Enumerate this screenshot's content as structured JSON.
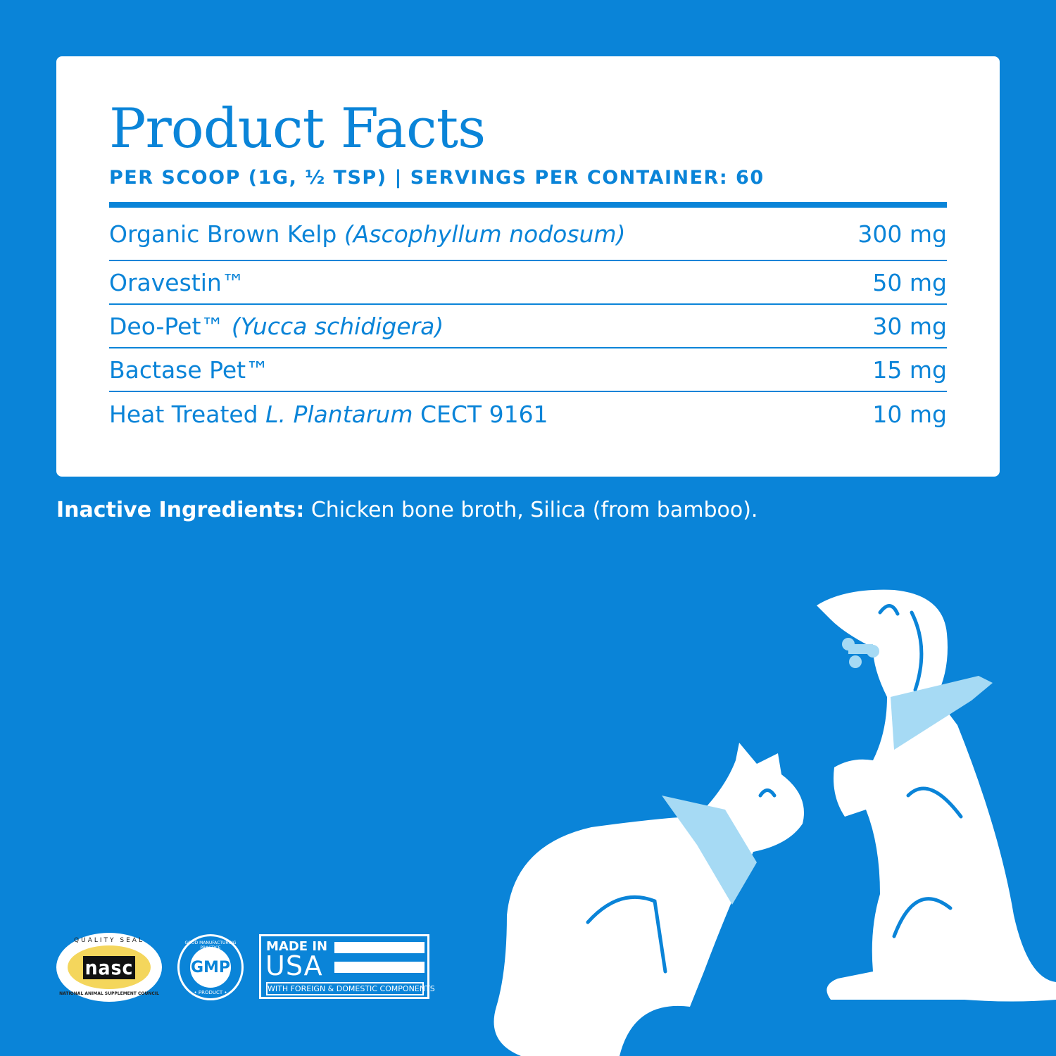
{
  "facts": {
    "title": "Product Facts",
    "serving": "PER SCOOP (1G, ½ TSP)  |  SERVINGS PER CONTAINER: 60",
    "rows": [
      {
        "name": "Organic Brown Kelp ",
        "italic": "(Ascophyllum nodosum)",
        "after": "",
        "amount": "300 mg"
      },
      {
        "name": "Oravestin™",
        "italic": "",
        "after": "",
        "amount": "50 mg"
      },
      {
        "name": "Deo-Pet™ ",
        "italic": "(Yucca schidigera)",
        "after": "",
        "amount": "30 mg"
      },
      {
        "name": "Bactase Pet™",
        "italic": "",
        "after": "",
        "amount": "15 mg"
      },
      {
        "name": "Heat Treated ",
        "italic": "L. Plantarum",
        "after": " CECT 9161",
        "amount": "10 mg"
      }
    ]
  },
  "inactive": {
    "label": "Inactive Ingredients:",
    "text": " Chicken bone broth, Silica (from bamboo)."
  },
  "badges": {
    "nasc": {
      "top": "QUALITY SEAL",
      "logo": "nasc",
      "bottom": "NATIONAL ANIMAL SUPPLEMENT COUNCIL"
    },
    "gmp": {
      "top": "GOOD MANUFACTURING PRACTICE",
      "center": "GMP",
      "bottom": "• PRODUCT •"
    },
    "usa": {
      "made": "MADE IN",
      "usa": "USA",
      "note": "WITH FOREIGN & DOMESTIC COMPONENTS"
    }
  },
  "colors": {
    "background": "#0a84d8",
    "card": "#ffffff",
    "bandana": "#a6daf4",
    "nasc_yellow": "#f4d65c"
  }
}
